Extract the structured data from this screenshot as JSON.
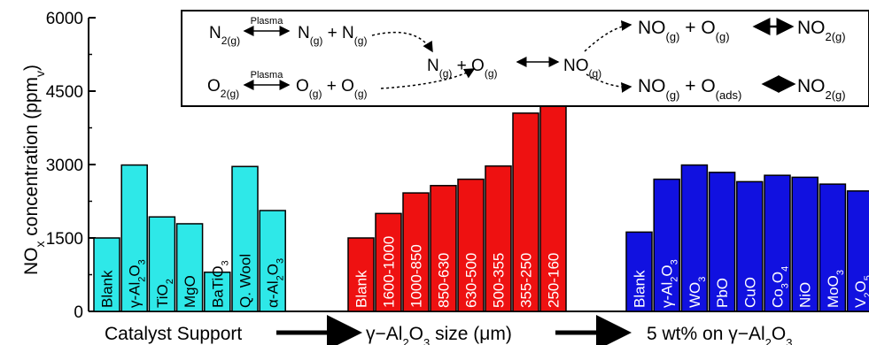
{
  "chart_data": {
    "type": "bar",
    "xlabel": "",
    "ylabel": "NO_x concentration (ppm_v)",
    "ylim": [
      0,
      6000
    ],
    "yticks": [
      "0",
      "1500",
      "3000",
      "4500",
      "6000"
    ],
    "ytick_values": [
      0,
      1500,
      3000,
      4500,
      6000
    ],
    "grid": false,
    "groups": [
      {
        "name": "Catalyst Support",
        "color": "#2ee8e8",
        "categories": [
          "Blank",
          "γ-Al₂O₃",
          "TiO₂",
          "MgO",
          "BaTiO₃",
          "Q. Wool",
          "α-Al₂O₃"
        ],
        "values": [
          1500,
          2990,
          1930,
          1790,
          800,
          2960,
          2060
        ]
      },
      {
        "name": "γ−Al₂O₃ size (μm)",
        "color": "#ee1111",
        "categories": [
          "Blank",
          "1600-1000",
          "1000-850",
          "850-630",
          "630-500",
          "500-355",
          "355-250",
          "250-160"
        ],
        "values": [
          1500,
          2000,
          2420,
          2570,
          2700,
          2970,
          4050,
          4980
        ]
      },
      {
        "name": "5 wt% on γ−Al₂O₃",
        "color": "#1111e0",
        "categories": [
          "Blank",
          "γ-Al₂O₃",
          "WO₃",
          "PbO",
          "CuO",
          "Co₃O₄",
          "NiO",
          "MoO₃",
          "V₂O₅"
        ],
        "values": [
          1620,
          2700,
          2990,
          2840,
          2650,
          2780,
          2740,
          2600,
          2460
        ]
      }
    ]
  },
  "inset": {
    "plasma_label": "Plasma",
    "row1": [
      "N₂(g)",
      "N(g) + N(g)",
      "N(g) + O(g)",
      "NO(g)",
      "NO(g) + O(g)",
      "NO₂(g)"
    ],
    "row2": [
      "O₂(g)",
      "O(g) + O(g)",
      "NO(g) + O(ads)",
      "NO₂(g)"
    ]
  }
}
